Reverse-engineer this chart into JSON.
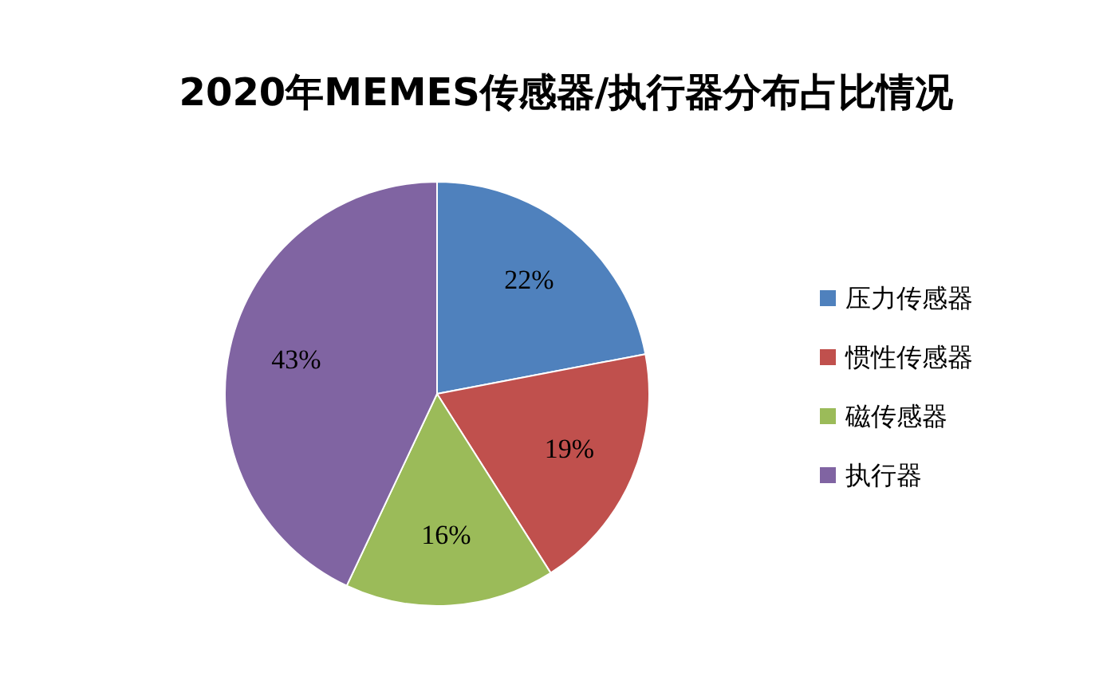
{
  "chart_data": {
    "type": "pie",
    "title": "2020年MEMES传感器/执行器分布占比情况",
    "categories": [
      "压力传感器",
      "惯性传感器",
      "磁传感器",
      "执行器"
    ],
    "values": [
      22,
      19,
      16,
      43
    ],
    "colors": [
      "#4f81bd",
      "#c0504d",
      "#9bbb59",
      "#8064a2"
    ],
    "value_labels": [
      "22%",
      "19%",
      "16%",
      "43%"
    ],
    "legend": "right"
  }
}
